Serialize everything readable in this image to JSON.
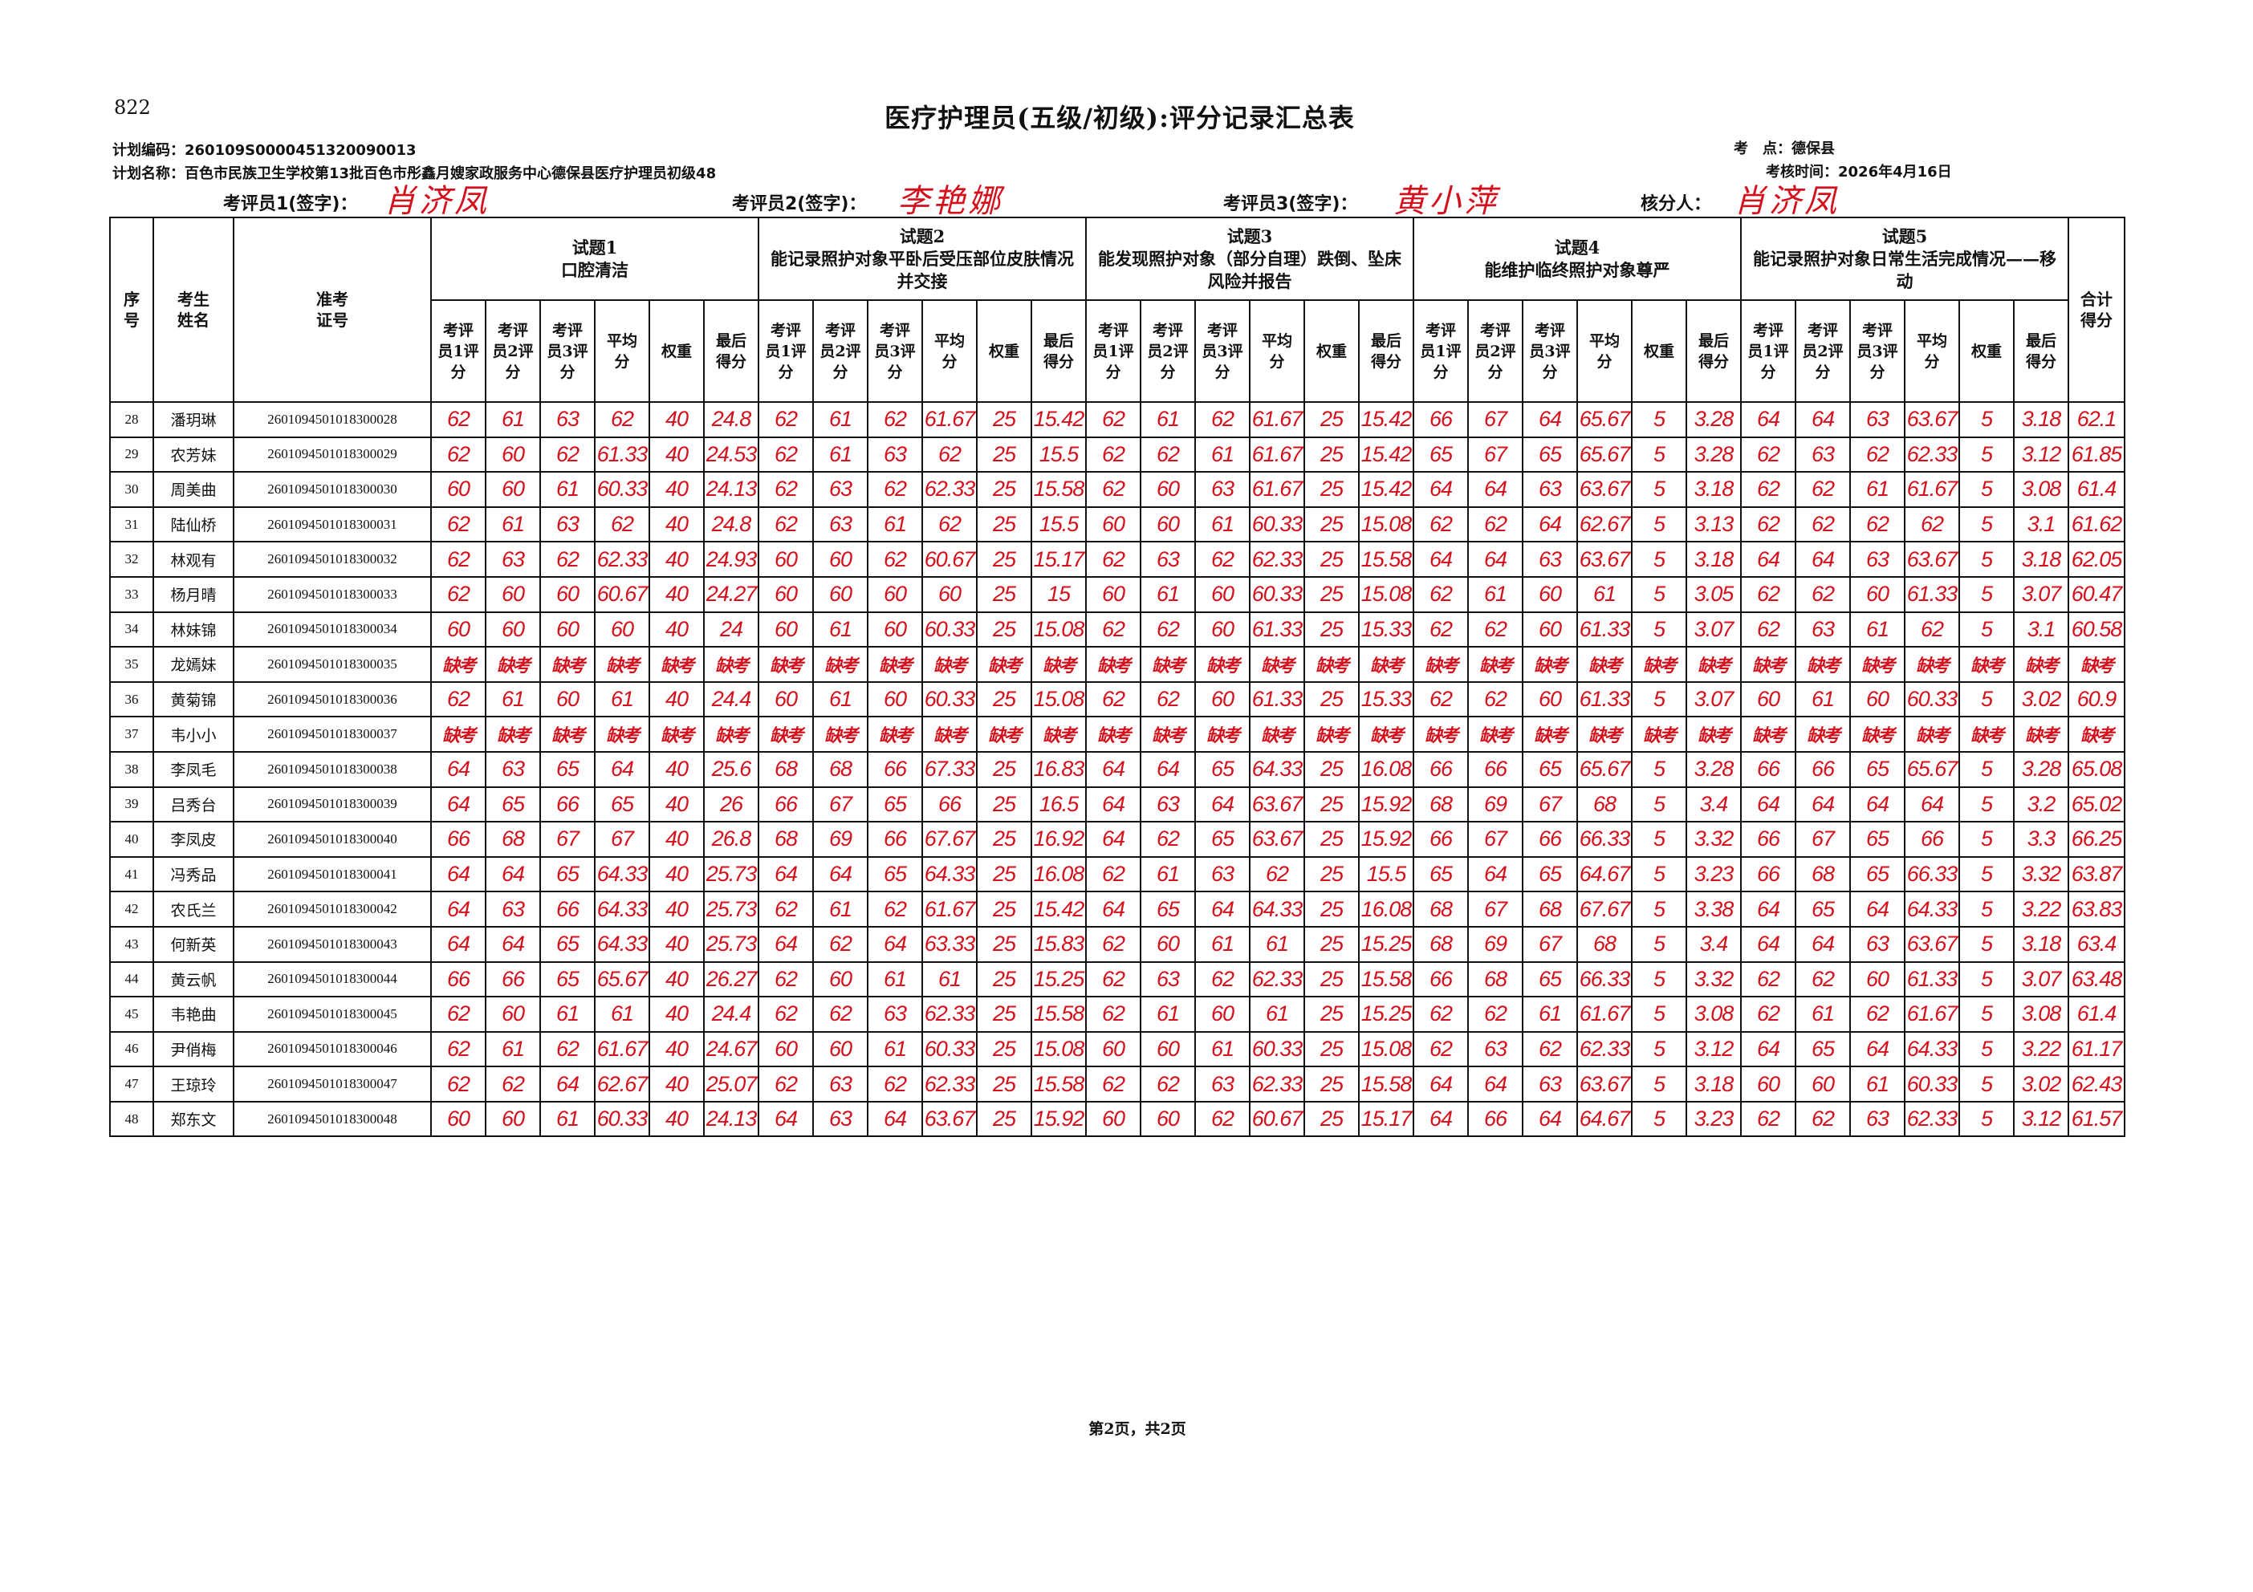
{
  "corner_mark": "822",
  "title": "医疗护理员(五级/初级):评分记录汇总表",
  "plan_code": "计划编码：260109S0000451320090013",
  "plan_name": "计划名称：百色市民族卫生学校第13批百色市彤鑫月嫂家政服务中心德保县医疗护理员初级48",
  "exam_site": "考　点：德保县",
  "exam_time": "考核时间：2026年4月16日",
  "signatures": {
    "examiner1_label": "考评员1(签字)：",
    "examiner1": "肖济凤",
    "examiner2_label": "考评员2(签字)：",
    "examiner2": "李艳娜",
    "examiner3_label": "考评员3(签字)：",
    "examiner3": "黄小萍",
    "checker_label": "核分人：",
    "checker": "肖济凤"
  },
  "table": {
    "col_seq": "序号",
    "col_name": "考生姓名",
    "col_id": "准考证号",
    "col_total": "合计得分",
    "subcols": [
      "考评员1评分",
      "考评员2评分",
      "考评员3评分",
      "平均分",
      "权重",
      "最后得分"
    ],
    "topics": [
      {
        "label": "试题1",
        "desc": "口腔清洁"
      },
      {
        "label": "试题2",
        "desc": "能记录照护对象平卧后受压部位皮肤情况并交接"
      },
      {
        "label": "试题3",
        "desc": "能发现照护对象（部分自理）跌倒、坠床风险并报告"
      },
      {
        "label": "试题4",
        "desc": "能维护临终照护对象尊严"
      },
      {
        "label": "试题5",
        "desc": "能记录照护对象日常生活完成情况——移动"
      }
    ],
    "absent_text": "缺考",
    "rows": [
      {
        "seq": "28",
        "name": "潘玥琳",
        "id": "2601094501018300028",
        "scores": [
          [
            "62",
            "61",
            "63",
            "62",
            "40",
            "24.8"
          ],
          [
            "62",
            "61",
            "62",
            "61.67",
            "25",
            "15.42"
          ],
          [
            "62",
            "61",
            "62",
            "61.67",
            "25",
            "15.42"
          ],
          [
            "66",
            "67",
            "64",
            "65.67",
            "5",
            "3.28"
          ],
          [
            "64",
            "64",
            "63",
            "63.67",
            "5",
            "3.18"
          ]
        ],
        "total": "62.1"
      },
      {
        "seq": "29",
        "name": "农芳妹",
        "id": "2601094501018300029",
        "scores": [
          [
            "62",
            "60",
            "62",
            "61.33",
            "40",
            "24.53"
          ],
          [
            "62",
            "61",
            "63",
            "62",
            "25",
            "15.5"
          ],
          [
            "62",
            "62",
            "61",
            "61.67",
            "25",
            "15.42"
          ],
          [
            "65",
            "67",
            "65",
            "65.67",
            "5",
            "3.28"
          ],
          [
            "62",
            "63",
            "62",
            "62.33",
            "5",
            "3.12"
          ]
        ],
        "total": "61.85"
      },
      {
        "seq": "30",
        "name": "周美曲",
        "id": "2601094501018300030",
        "scores": [
          [
            "60",
            "60",
            "61",
            "60.33",
            "40",
            "24.13"
          ],
          [
            "62",
            "63",
            "62",
            "62.33",
            "25",
            "15.58"
          ],
          [
            "62",
            "60",
            "63",
            "61.67",
            "25",
            "15.42"
          ],
          [
            "64",
            "64",
            "63",
            "63.67",
            "5",
            "3.18"
          ],
          [
            "62",
            "62",
            "61",
            "61.67",
            "5",
            "3.08"
          ]
        ],
        "total": "61.4"
      },
      {
        "seq": "31",
        "name": "陆仙桥",
        "id": "2601094501018300031",
        "scores": [
          [
            "62",
            "61",
            "63",
            "62",
            "40",
            "24.8"
          ],
          [
            "62",
            "63",
            "61",
            "62",
            "25",
            "15.5"
          ],
          [
            "60",
            "60",
            "61",
            "60.33",
            "25",
            "15.08"
          ],
          [
            "62",
            "62",
            "64",
            "62.67",
            "5",
            "3.13"
          ],
          [
            "62",
            "62",
            "62",
            "62",
            "5",
            "3.1"
          ]
        ],
        "total": "61.62"
      },
      {
        "seq": "32",
        "name": "林观有",
        "id": "2601094501018300032",
        "scores": [
          [
            "62",
            "63",
            "62",
            "62.33",
            "40",
            "24.93"
          ],
          [
            "60",
            "60",
            "62",
            "60.67",
            "25",
            "15.17"
          ],
          [
            "62",
            "63",
            "62",
            "62.33",
            "25",
            "15.58"
          ],
          [
            "64",
            "64",
            "63",
            "63.67",
            "5",
            "3.18"
          ],
          [
            "64",
            "64",
            "63",
            "63.67",
            "5",
            "3.18"
          ]
        ],
        "total": "62.05"
      },
      {
        "seq": "33",
        "name": "杨月晴",
        "id": "2601094501018300033",
        "scores": [
          [
            "62",
            "60",
            "60",
            "60.67",
            "40",
            "24.27"
          ],
          [
            "60",
            "60",
            "60",
            "60",
            "25",
            "15"
          ],
          [
            "60",
            "61",
            "60",
            "60.33",
            "25",
            "15.08"
          ],
          [
            "62",
            "61",
            "60",
            "61",
            "5",
            "3.05"
          ],
          [
            "62",
            "62",
            "60",
            "61.33",
            "5",
            "3.07"
          ]
        ],
        "total": "60.47"
      },
      {
        "seq": "34",
        "name": "林妹锦",
        "id": "2601094501018300034",
        "scores": [
          [
            "60",
            "60",
            "60",
            "60",
            "40",
            "24"
          ],
          [
            "60",
            "61",
            "60",
            "60.33",
            "25",
            "15.08"
          ],
          [
            "62",
            "62",
            "60",
            "61.33",
            "25",
            "15.33"
          ],
          [
            "62",
            "62",
            "60",
            "61.33",
            "5",
            "3.07"
          ],
          [
            "62",
            "63",
            "61",
            "62",
            "5",
            "3.1"
          ]
        ],
        "total": "60.58"
      },
      {
        "seq": "35",
        "name": "龙嫣妹",
        "id": "2601094501018300035",
        "absent": true
      },
      {
        "seq": "36",
        "name": "黄菊锦",
        "id": "2601094501018300036",
        "scores": [
          [
            "62",
            "61",
            "60",
            "61",
            "40",
            "24.4"
          ],
          [
            "60",
            "61",
            "60",
            "60.33",
            "25",
            "15.08"
          ],
          [
            "62",
            "62",
            "60",
            "61.33",
            "25",
            "15.33"
          ],
          [
            "62",
            "62",
            "60",
            "61.33",
            "5",
            "3.07"
          ],
          [
            "60",
            "61",
            "60",
            "60.33",
            "5",
            "3.02"
          ]
        ],
        "total": "60.9"
      },
      {
        "seq": "37",
        "name": "韦小小",
        "id": "2601094501018300037",
        "absent": true
      },
      {
        "seq": "38",
        "name": "李凤毛",
        "id": "2601094501018300038",
        "scores": [
          [
            "64",
            "63",
            "65",
            "64",
            "40",
            "25.6"
          ],
          [
            "68",
            "68",
            "66",
            "67.33",
            "25",
            "16.83"
          ],
          [
            "64",
            "64",
            "65",
            "64.33",
            "25",
            "16.08"
          ],
          [
            "66",
            "66",
            "65",
            "65.67",
            "5",
            "3.28"
          ],
          [
            "66",
            "66",
            "65",
            "65.67",
            "5",
            "3.28"
          ]
        ],
        "total": "65.08"
      },
      {
        "seq": "39",
        "name": "吕秀台",
        "id": "2601094501018300039",
        "scores": [
          [
            "64",
            "65",
            "66",
            "65",
            "40",
            "26"
          ],
          [
            "66",
            "67",
            "65",
            "66",
            "25",
            "16.5"
          ],
          [
            "64",
            "63",
            "64",
            "63.67",
            "25",
            "15.92"
          ],
          [
            "68",
            "69",
            "67",
            "68",
            "5",
            "3.4"
          ],
          [
            "64",
            "64",
            "64",
            "64",
            "5",
            "3.2"
          ]
        ],
        "total": "65.02"
      },
      {
        "seq": "40",
        "name": "李凤皮",
        "id": "2601094501018300040",
        "scores": [
          [
            "66",
            "68",
            "67",
            "67",
            "40",
            "26.8"
          ],
          [
            "68",
            "69",
            "66",
            "67.67",
            "25",
            "16.92"
          ],
          [
            "64",
            "62",
            "65",
            "63.67",
            "25",
            "15.92"
          ],
          [
            "66",
            "67",
            "66",
            "66.33",
            "5",
            "3.32"
          ],
          [
            "66",
            "67",
            "65",
            "66",
            "5",
            "3.3"
          ]
        ],
        "total": "66.25"
      },
      {
        "seq": "41",
        "name": "冯秀品",
        "id": "2601094501018300041",
        "scores": [
          [
            "64",
            "64",
            "65",
            "64.33",
            "40",
            "25.73"
          ],
          [
            "64",
            "64",
            "65",
            "64.33",
            "25",
            "16.08"
          ],
          [
            "62",
            "61",
            "63",
            "62",
            "25",
            "15.5"
          ],
          [
            "65",
            "64",
            "65",
            "64.67",
            "5",
            "3.23"
          ],
          [
            "66",
            "68",
            "65",
            "66.33",
            "5",
            "3.32"
          ]
        ],
        "total": "63.87"
      },
      {
        "seq": "42",
        "name": "农氏兰",
        "id": "2601094501018300042",
        "scores": [
          [
            "64",
            "63",
            "66",
            "64.33",
            "40",
            "25.73"
          ],
          [
            "62",
            "61",
            "62",
            "61.67",
            "25",
            "15.42"
          ],
          [
            "64",
            "65",
            "64",
            "64.33",
            "25",
            "16.08"
          ],
          [
            "68",
            "67",
            "68",
            "67.67",
            "5",
            "3.38"
          ],
          [
            "64",
            "65",
            "64",
            "64.33",
            "5",
            "3.22"
          ]
        ],
        "total": "63.83"
      },
      {
        "seq": "43",
        "name": "何新英",
        "id": "2601094501018300043",
        "scores": [
          [
            "64",
            "64",
            "65",
            "64.33",
            "40",
            "25.73"
          ],
          [
            "64",
            "62",
            "64",
            "63.33",
            "25",
            "15.83"
          ],
          [
            "62",
            "60",
            "61",
            "61",
            "25",
            "15.25"
          ],
          [
            "68",
            "69",
            "67",
            "68",
            "5",
            "3.4"
          ],
          [
            "64",
            "64",
            "63",
            "63.67",
            "5",
            "3.18"
          ]
        ],
        "total": "63.4"
      },
      {
        "seq": "44",
        "name": "黄云帆",
        "id": "2601094501018300044",
        "scores": [
          [
            "66",
            "66",
            "65",
            "65.67",
            "40",
            "26.27"
          ],
          [
            "62",
            "60",
            "61",
            "61",
            "25",
            "15.25"
          ],
          [
            "62",
            "63",
            "62",
            "62.33",
            "25",
            "15.58"
          ],
          [
            "66",
            "68",
            "65",
            "66.33",
            "5",
            "3.32"
          ],
          [
            "62",
            "62",
            "60",
            "61.33",
            "5",
            "3.07"
          ]
        ],
        "total": "63.48"
      },
      {
        "seq": "45",
        "name": "韦艳曲",
        "id": "2601094501018300045",
        "scores": [
          [
            "62",
            "60",
            "61",
            "61",
            "40",
            "24.4"
          ],
          [
            "62",
            "62",
            "63",
            "62.33",
            "25",
            "15.58"
          ],
          [
            "62",
            "61",
            "60",
            "61",
            "25",
            "15.25"
          ],
          [
            "62",
            "62",
            "61",
            "61.67",
            "5",
            "3.08"
          ],
          [
            "62",
            "61",
            "62",
            "61.67",
            "5",
            "3.08"
          ]
        ],
        "total": "61.4"
      },
      {
        "seq": "46",
        "name": "尹俏梅",
        "id": "2601094501018300046",
        "scores": [
          [
            "62",
            "61",
            "62",
            "61.67",
            "40",
            "24.67"
          ],
          [
            "60",
            "60",
            "61",
            "60.33",
            "25",
            "15.08"
          ],
          [
            "60",
            "60",
            "61",
            "60.33",
            "25",
            "15.08"
          ],
          [
            "62",
            "63",
            "62",
            "62.33",
            "5",
            "3.12"
          ],
          [
            "64",
            "65",
            "64",
            "64.33",
            "5",
            "3.22"
          ]
        ],
        "total": "61.17"
      },
      {
        "seq": "47",
        "name": "王琼玲",
        "id": "2601094501018300047",
        "scores": [
          [
            "62",
            "62",
            "64",
            "62.67",
            "40",
            "25.07"
          ],
          [
            "62",
            "63",
            "62",
            "62.33",
            "25",
            "15.58"
          ],
          [
            "62",
            "62",
            "63",
            "62.33",
            "25",
            "15.58"
          ],
          [
            "64",
            "64",
            "63",
            "63.67",
            "5",
            "3.18"
          ],
          [
            "60",
            "60",
            "61",
            "60.33",
            "5",
            "3.02"
          ]
        ],
        "total": "62.43"
      },
      {
        "seq": "48",
        "name": "郑东文",
        "id": "2601094501018300048",
        "scores": [
          [
            "60",
            "60",
            "61",
            "60.33",
            "40",
            "24.13"
          ],
          [
            "64",
            "63",
            "64",
            "63.67",
            "25",
            "15.92"
          ],
          [
            "60",
            "60",
            "62",
            "60.67",
            "25",
            "15.17"
          ],
          [
            "64",
            "66",
            "64",
            "64.67",
            "5",
            "3.23"
          ],
          [
            "62",
            "62",
            "63",
            "62.33",
            "5",
            "3.12"
          ]
        ],
        "total": "61.57"
      }
    ]
  },
  "footer": "第2页，共2页",
  "colors": {
    "ink": "#111111",
    "handwriting": "#d4101c"
  }
}
